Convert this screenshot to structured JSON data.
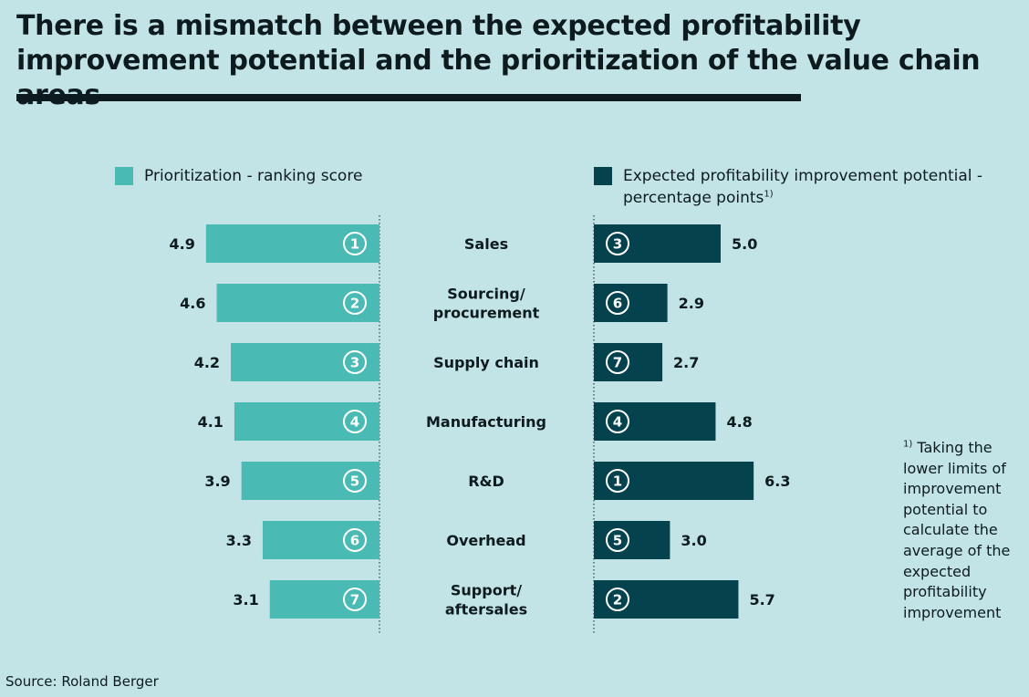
{
  "title": "There is a mismatch between the expected profitability improvement potential and the prioritization of the value chain areas",
  "legend": {
    "left": "Prioritization - ranking score",
    "right": "Expected profitability improvement potential - percentage points",
    "right_marker": "1)"
  },
  "footnote": {
    "marker": "1)",
    "text": "Taking the lower limits of improvement potential to calculate the average of the expected profitability improvement"
  },
  "source": "Source: Roland Berger",
  "colors": {
    "left_bar": "#4abab5",
    "right_bar": "#04424d",
    "background": "#c2e4e6",
    "text": "#0d1b1e"
  },
  "chart_data": {
    "type": "bar",
    "layout": "butterfly",
    "categories": [
      [
        "Sales"
      ],
      [
        "Sourcing/",
        "procurement"
      ],
      [
        "Supply chain"
      ],
      [
        "Manufacturing"
      ],
      [
        "R&D"
      ],
      [
        "Overhead"
      ],
      [
        "Support/",
        "aftersales"
      ]
    ],
    "series": [
      {
        "name": "Prioritization - ranking score",
        "values": [
          4.9,
          4.6,
          4.2,
          4.1,
          3.9,
          3.3,
          3.1
        ],
        "labels": [
          "4.9",
          "4.6",
          "4.2",
          "4.1",
          "3.9",
          "3.3",
          "3.1"
        ],
        "ranks": [
          "1",
          "2",
          "3",
          "4",
          "5",
          "6",
          "7"
        ]
      },
      {
        "name": "Expected profitability improvement potential - percentage points",
        "values": [
          5.0,
          2.9,
          2.7,
          4.8,
          6.3,
          3.0,
          5.7
        ],
        "labels": [
          "5.0",
          "2.9",
          "2.7",
          "4.8",
          "6.3",
          "3.0",
          "5.7"
        ],
        "ranks": [
          "3",
          "6",
          "7",
          "4",
          "1",
          "5",
          "2"
        ]
      }
    ]
  }
}
